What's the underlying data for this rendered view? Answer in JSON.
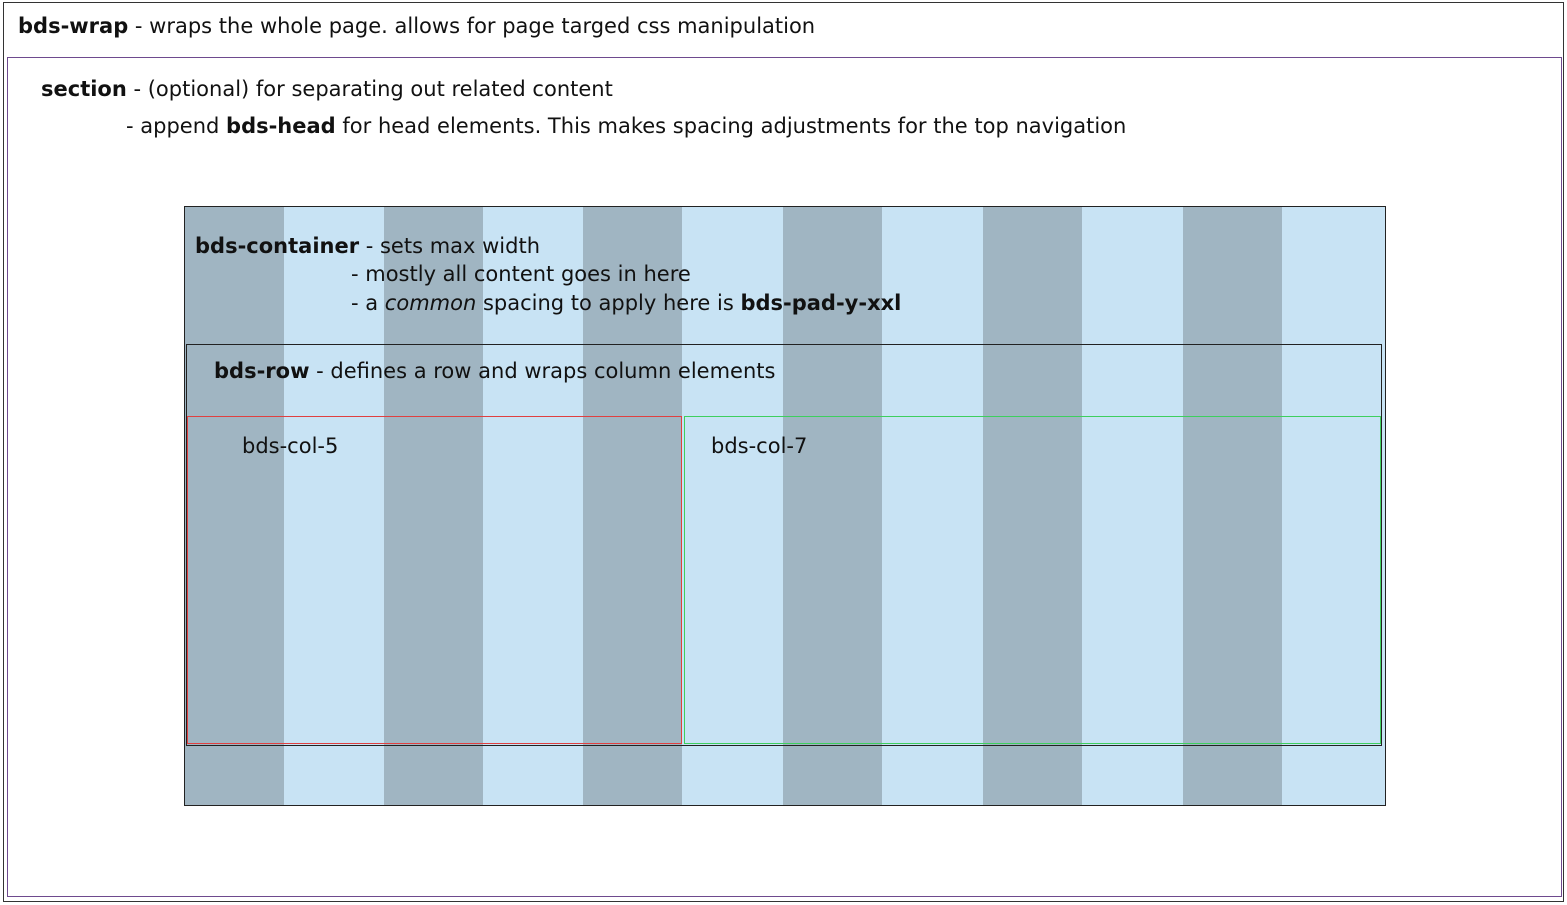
{
  "colors": {
    "section_border": "#6e4a8e",
    "container_bg": "#c8e3f4",
    "grid_stripe": "#a0b5c2",
    "col5_border": "#e04040",
    "col7_border": "#3ecf5e"
  },
  "wrap": {
    "name": "bds-wrap",
    "desc": " - wraps the whole page. allows for page targed css manipulation"
  },
  "section": {
    "name": "section",
    "desc": " - (optional) for separating out related content",
    "line2_pre": "- append ",
    "line2_bold": "bds-head",
    "line2_post": " for head elements. This makes spacing adjustments for the top navigation"
  },
  "container": {
    "name": "bds-container",
    "desc1": " - sets max width",
    "desc2": "- mostly all content goes in here",
    "desc3_pre": "- a ",
    "desc3_italic": "common",
    "desc3_mid": " spacing to apply here is ",
    "desc3_bold": "bds-pad-y-xxl"
  },
  "row": {
    "name": "bds-row",
    "desc": " - defines a row and wraps column elements"
  },
  "columns": [
    {
      "label": "bds-col-5"
    },
    {
      "label": "bds-col-7"
    }
  ]
}
